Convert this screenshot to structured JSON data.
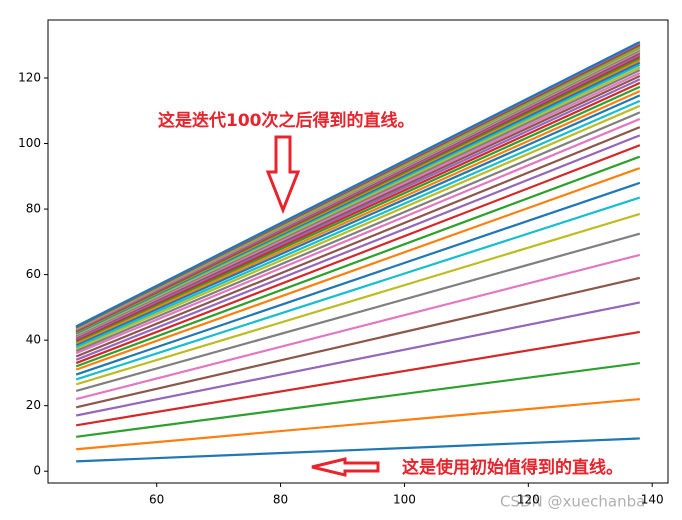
{
  "chart_data": {
    "type": "line",
    "x": [
      47,
      138
    ],
    "xlim": [
      42.45,
      142.55
    ],
    "xticks": [
      60,
      80,
      100,
      120,
      140
    ],
    "ylim": [
      -3.6,
      137.7
    ],
    "yticks": [
      0,
      20,
      40,
      60,
      80,
      100,
      120
    ],
    "annotations": [
      "这是迭代100次之后得到的直线。",
      "这是使用初始值得到的直线。"
    ],
    "watermark": "CSDN @xuechanba",
    "series": [
      {
        "color": "#1f77b4",
        "values": [
          3,
          10
        ]
      },
      {
        "color": "#ff7f0e",
        "values": [
          6.7,
          22
        ]
      },
      {
        "color": "#2ca02c",
        "values": [
          10.5,
          33
        ]
      },
      {
        "color": "#d62728",
        "values": [
          14,
          42.5
        ]
      },
      {
        "color": "#9467bd",
        "values": [
          17,
          51.5
        ]
      },
      {
        "color": "#8c564b",
        "values": [
          19.5,
          59
        ]
      },
      {
        "color": "#e377c2",
        "values": [
          22,
          66
        ]
      },
      {
        "color": "#7f7f7f",
        "values": [
          24.5,
          72.5
        ]
      },
      {
        "color": "#bcbd22",
        "values": [
          26.5,
          78.5
        ]
      },
      {
        "color": "#17becf",
        "values": [
          28,
          83.5
        ]
      },
      {
        "color": "#1f77b4",
        "values": [
          29.5,
          88
        ]
      },
      {
        "color": "#ff7f0e",
        "values": [
          31,
          92.5
        ]
      },
      {
        "color": "#2ca02c",
        "values": [
          32,
          96
        ]
      },
      {
        "color": "#d62728",
        "values": [
          33,
          99.5
        ]
      },
      {
        "color": "#9467bd",
        "values": [
          34,
          102.5
        ]
      },
      {
        "color": "#8c564b",
        "values": [
          35,
          105
        ]
      },
      {
        "color": "#e377c2",
        "values": [
          36,
          107.5
        ]
      },
      {
        "color": "#7f7f7f",
        "values": [
          36.7,
          109.5
        ]
      },
      {
        "color": "#bcbd22",
        "values": [
          37.4,
          111.5
        ]
      },
      {
        "color": "#17becf",
        "values": [
          38,
          113
        ]
      },
      {
        "color": "#1f77b4",
        "values": [
          38.6,
          114.7
        ]
      },
      {
        "color": "#ff7f0e",
        "values": [
          39.1,
          116
        ]
      },
      {
        "color": "#2ca02c",
        "values": [
          39.6,
          117.3
        ]
      },
      {
        "color": "#d62728",
        "values": [
          40,
          118.5
        ]
      },
      {
        "color": "#9467bd",
        "values": [
          40.4,
          119.6
        ]
      },
      {
        "color": "#8c564b",
        "values": [
          40.8,
          120.6
        ]
      },
      {
        "color": "#e377c2",
        "values": [
          41.1,
          121.5
        ]
      },
      {
        "color": "#7f7f7f",
        "values": [
          41.4,
          122.4
        ]
      },
      {
        "color": "#bcbd22",
        "values": [
          41.7,
          123.2
        ]
      },
      {
        "color": "#17becf",
        "values": [
          42,
          124
        ]
      },
      {
        "color": "#1f77b4",
        "values": [
          42.2,
          124.7
        ]
      },
      {
        "color": "#ff7f0e",
        "values": [
          42.4,
          125.4
        ]
      },
      {
        "color": "#2ca02c",
        "values": [
          42.6,
          126
        ]
      },
      {
        "color": "#d62728",
        "values": [
          42.8,
          126.6
        ]
      },
      {
        "color": "#9467bd",
        "values": [
          43,
          127.1
        ]
      },
      {
        "color": "#8c564b",
        "values": [
          43.2,
          127.6
        ]
      },
      {
        "color": "#e377c2",
        "values": [
          43.3,
          128.1
        ]
      },
      {
        "color": "#7f7f7f",
        "values": [
          43.5,
          128.5
        ]
      },
      {
        "color": "#bcbd22",
        "values": [
          43.6,
          128.9
        ]
      },
      {
        "color": "#17becf",
        "values": [
          43.7,
          129.3
        ]
      },
      {
        "color": "#ff7f0e",
        "values": [
          43.8,
          129.6
        ]
      },
      {
        "color": "#2ca02c",
        "values": [
          43.9,
          130
        ]
      },
      {
        "color": "#d62728",
        "values": [
          44,
          130.3
        ]
      },
      {
        "color": "#9467bd",
        "values": [
          44.1,
          130.6
        ]
      },
      {
        "color": "#1f77b4",
        "values": [
          44.2,
          131
        ]
      }
    ]
  }
}
